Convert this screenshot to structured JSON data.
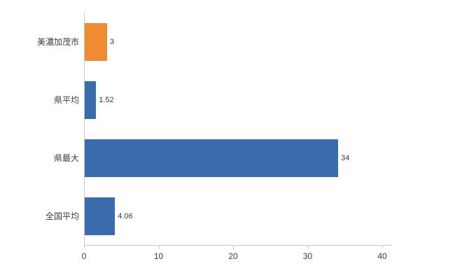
{
  "chart_data": {
    "type": "bar",
    "orientation": "horizontal",
    "title": "",
    "xlabel": "",
    "ylabel": "",
    "categories": [
      "美濃加茂市",
      "県平均",
      "県最大",
      "全国平均"
    ],
    "values": [
      3,
      1.52,
      34,
      4.06
    ],
    "value_labels": [
      "3",
      "1.52",
      "34",
      "4.06"
    ],
    "bar_colors": [
      "#ee8b33",
      "#3a6bab",
      "#3a6bab",
      "#3a6bab"
    ],
    "xlim": [
      0,
      40
    ],
    "x_ticks": [
      0,
      10,
      20,
      30,
      40
    ],
    "grid": "off",
    "legend": "none",
    "axis_color": "#c9c9c9",
    "text_color": "#3c3c3c",
    "background_color": "#ffffff"
  }
}
